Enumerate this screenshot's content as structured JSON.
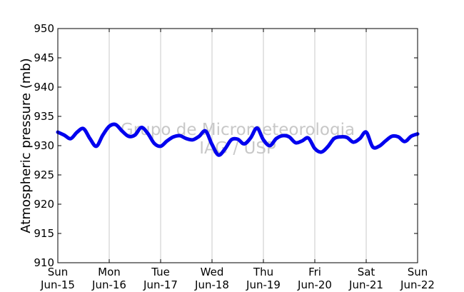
{
  "chart_data": {
    "type": "line",
    "title": "",
    "xlabel": "",
    "ylabel": "Atmospheric pressure (mb)",
    "ylim": [
      910,
      950
    ],
    "yticks": [
      910,
      915,
      920,
      925,
      930,
      935,
      940,
      945,
      950
    ],
    "xlim": [
      "2014-06-15",
      "2014-06-22"
    ],
    "xticks": [
      {
        "day": "Sun",
        "date": "Jun-15"
      },
      {
        "day": "Mon",
        "date": "Jun-16"
      },
      {
        "day": "Tue",
        "date": "Jun-17"
      },
      {
        "day": "Wed",
        "date": "Jun-18"
      },
      {
        "day": "Thu",
        "date": "Jun-19"
      },
      {
        "day": "Fri",
        "date": "Jun-20"
      },
      {
        "day": "Sat",
        "date": "Jun-21"
      },
      {
        "day": "Sun",
        "date": "Jun-22"
      }
    ],
    "grid": "vertical",
    "watermark": [
      "Grupo de Micrometeorologia",
      "IAG / USP"
    ],
    "series": [
      {
        "color": "#0000ee",
        "x": [
          "Jun-15 00:00",
          "Jun-15 03:00",
          "Jun-15 06:00",
          "Jun-15 09:00",
          "Jun-15 12:00",
          "Jun-15 15:00",
          "Jun-15 18:00",
          "Jun-15 21:00",
          "Jun-16 00:00",
          "Jun-16 03:00",
          "Jun-16 06:00",
          "Jun-16 09:00",
          "Jun-16 12:00",
          "Jun-16 15:00",
          "Jun-16 18:00",
          "Jun-16 21:00",
          "Jun-17 00:00",
          "Jun-17 03:00",
          "Jun-17 06:00",
          "Jun-17 09:00",
          "Jun-17 12:00",
          "Jun-17 15:00",
          "Jun-17 18:00",
          "Jun-17 21:00",
          "Jun-18 00:00",
          "Jun-18 03:00",
          "Jun-18 06:00",
          "Jun-18 09:00",
          "Jun-18 12:00",
          "Jun-18 15:00",
          "Jun-18 18:00",
          "Jun-18 21:00",
          "Jun-19 00:00",
          "Jun-19 03:00",
          "Jun-19 06:00",
          "Jun-19 09:00",
          "Jun-19 12:00",
          "Jun-19 15:00",
          "Jun-19 18:00",
          "Jun-19 21:00",
          "Jun-20 00:00",
          "Jun-20 03:00",
          "Jun-20 06:00",
          "Jun-20 09:00",
          "Jun-20 12:00",
          "Jun-20 15:00",
          "Jun-20 18:00",
          "Jun-20 21:00",
          "Jun-21 00:00",
          "Jun-21 03:00",
          "Jun-21 06:00",
          "Jun-21 09:00",
          "Jun-21 12:00",
          "Jun-21 15:00",
          "Jun-21 18:00",
          "Jun-21 21:00",
          "Jun-22 00:00"
        ],
        "values": [
          932.3,
          931.8,
          931.2,
          932.3,
          932.9,
          931.2,
          929.9,
          931.8,
          933.3,
          933.6,
          932.5,
          931.6,
          931.8,
          933.1,
          932.1,
          930.4,
          929.9,
          930.8,
          931.5,
          931.7,
          931.2,
          931.0,
          931.6,
          932.5,
          930.2,
          928.4,
          929.4,
          931.0,
          931.1,
          930.3,
          931.3,
          933.0,
          931.0,
          930.0,
          931.2,
          931.7,
          931.5,
          930.5,
          930.8,
          931.3,
          929.5,
          928.9,
          929.8,
          931.2,
          931.5,
          931.4,
          930.6,
          931.2,
          932.3,
          929.8,
          929.9,
          930.8,
          931.6,
          931.5,
          930.7,
          931.6,
          932.0
        ]
      }
    ]
  }
}
